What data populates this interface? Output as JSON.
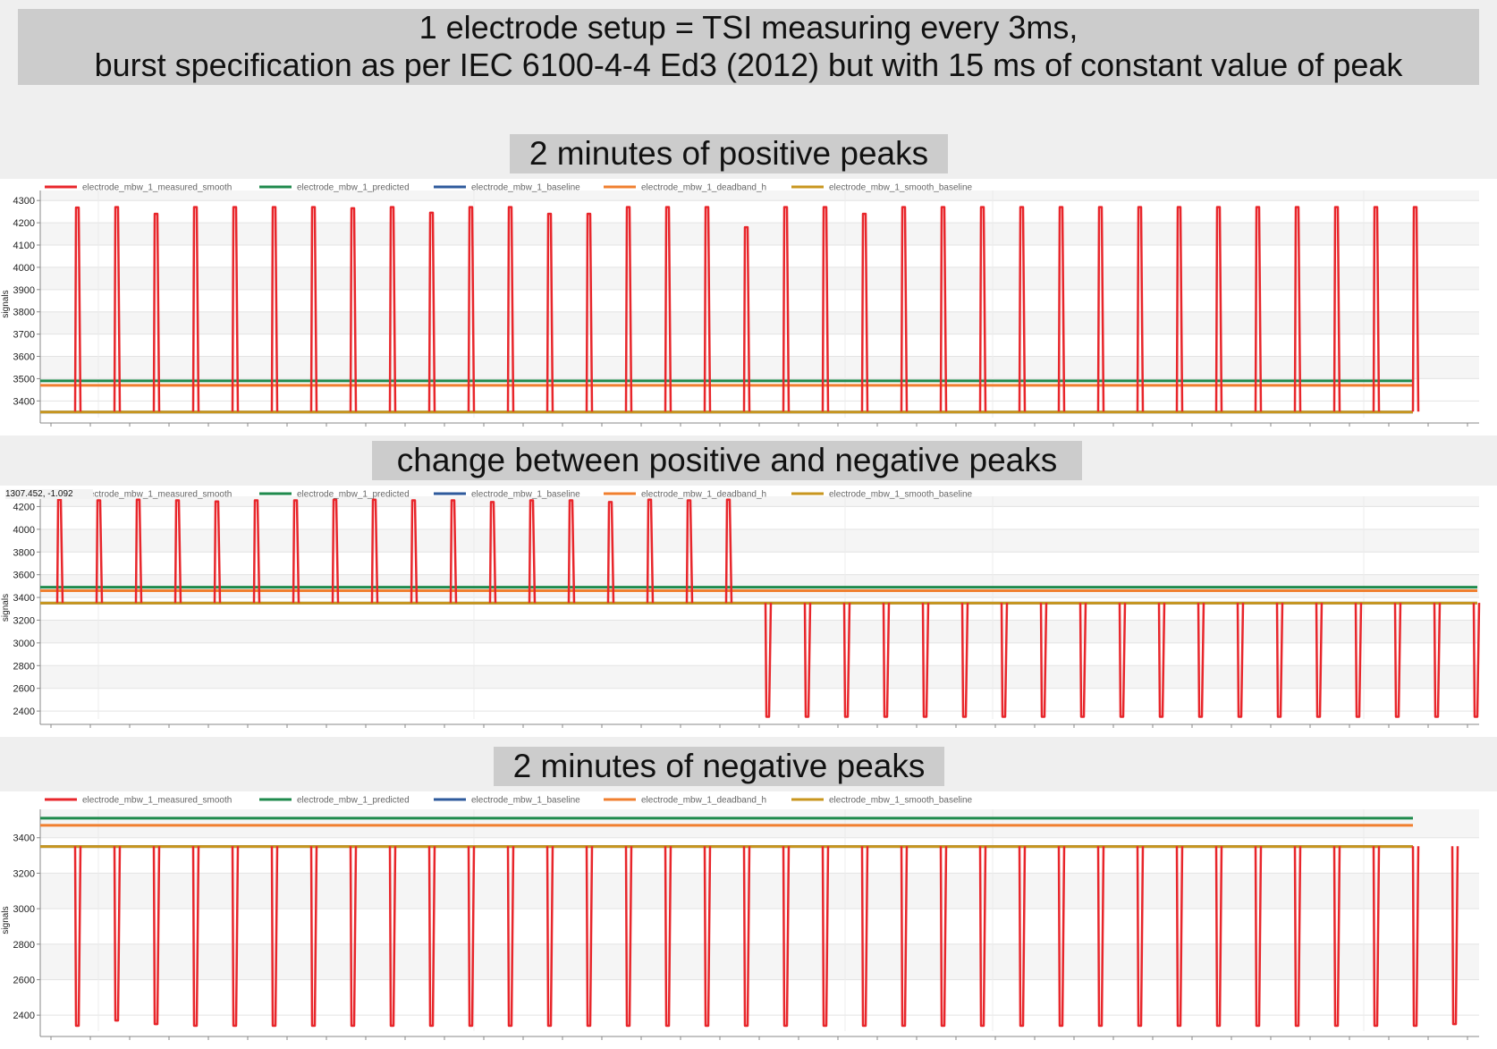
{
  "header": {
    "title_line1": "1 electrode setup = TSI measuring every 3ms,",
    "title_line2": "burst specification as per IEC 6100-4-4 Ed3 (2012) but with 15 ms of constant value of peak"
  },
  "panels": [
    {
      "title": "2 minutes of positive peaks"
    },
    {
      "title": "change between positive and negative peaks",
      "tooltip": "1307.452, -1.092"
    },
    {
      "title": "2 minutes of negative peaks"
    }
  ],
  "colors": {
    "measured_smooth": "#e8262b",
    "predicted": "#1f8a4c",
    "baseline": "#2e5a9c",
    "deadband_h": "#f07f2f",
    "smooth_baseline": "#c8961e"
  },
  "chart_data": [
    {
      "type": "line",
      "ylabel": "signals",
      "ylim": [
        3325,
        4345
      ],
      "yticks": [
        3400,
        3500,
        3600,
        3700,
        3800,
        3900,
        4000,
        4100,
        4200,
        4300
      ],
      "legend_position": "top-left",
      "series": [
        {
          "name": "electrode_mbw_1_measured_smooth",
          "kind": "peaks",
          "baseline": 3352,
          "direction": "positive",
          "peaks": [
            4268,
            4270,
            4240,
            4270,
            4270,
            4270,
            4270,
            4265,
            4270,
            4245,
            4270,
            4270,
            4240,
            4240,
            4270,
            4270,
            4270,
            4180,
            4270,
            4270,
            4240,
            4270,
            4270,
            4270,
            4270,
            4270,
            4270,
            4270,
            4270,
            4270,
            4270,
            4270,
            4270,
            4270,
            4270
          ]
        },
        {
          "name": "electrode_mbw_1_predicted",
          "kind": "level",
          "value": 3490
        },
        {
          "name": "electrode_mbw_1_baseline",
          "kind": "level",
          "value": 3350
        },
        {
          "name": "electrode_mbw_1_deadband_h",
          "kind": "level",
          "value": 3470
        },
        {
          "name": "electrode_mbw_1_smooth_baseline",
          "kind": "level",
          "value": 3350
        }
      ]
    },
    {
      "type": "line",
      "ylabel": "signals",
      "ylim": [
        2330,
        4290
      ],
      "yticks": [
        2400,
        2600,
        2800,
        3000,
        3200,
        3400,
        3600,
        3800,
        4000,
        4200
      ],
      "legend_position": "top-left",
      "series": [
        {
          "name": "electrode_mbw_1_measured_smooth",
          "kind": "peaks",
          "baseline": 3352,
          "direction": "mixed",
          "peaks": [
            4260,
            4255,
            4260,
            4255,
            4245,
            4255,
            4255,
            4260,
            4260,
            4255,
            4255,
            4240,
            4255,
            4255,
            4240,
            4260,
            4255,
            4260,
            2350,
            2350,
            2350,
            2350,
            2350,
            2350,
            2350,
            2350,
            2350,
            2350,
            2350,
            2350,
            2350,
            2350,
            2350,
            2350,
            2350,
            2350,
            2350,
            2350
          ]
        },
        {
          "name": "electrode_mbw_1_predicted",
          "kind": "level",
          "value": 3490
        },
        {
          "name": "electrode_mbw_1_baseline",
          "kind": "level",
          "value": 3350
        },
        {
          "name": "electrode_mbw_1_deadband_h",
          "kind": "level",
          "value": 3460
        },
        {
          "name": "electrode_mbw_1_smooth_baseline",
          "kind": "level",
          "value": 3350
        }
      ]
    },
    {
      "type": "line",
      "ylabel": "signals",
      "ylim": [
        2310,
        3560
      ],
      "yticks": [
        2400,
        2600,
        2800,
        3000,
        3200,
        3400
      ],
      "legend_position": "top-left",
      "series": [
        {
          "name": "electrode_mbw_1_measured_smooth",
          "kind": "peaks",
          "baseline": 3352,
          "direction": "negative",
          "peaks": [
            2340,
            2370,
            2350,
            2340,
            2340,
            2340,
            2340,
            2340,
            2340,
            2340,
            2340,
            2340,
            2340,
            2340,
            2340,
            2340,
            2340,
            2340,
            2340,
            2340,
            2340,
            2340,
            2340,
            2340,
            2340,
            2340,
            2340,
            2340,
            2340,
            2340,
            2340,
            2340,
            2340,
            2340,
            2340,
            2350
          ]
        },
        {
          "name": "electrode_mbw_1_predicted",
          "kind": "level",
          "value": 3510
        },
        {
          "name": "electrode_mbw_1_baseline",
          "kind": "level",
          "value": 3350
        },
        {
          "name": "electrode_mbw_1_deadband_h",
          "kind": "level",
          "value": 3470
        },
        {
          "name": "electrode_mbw_1_smooth_baseline",
          "kind": "level",
          "value": 3350
        }
      ]
    }
  ]
}
